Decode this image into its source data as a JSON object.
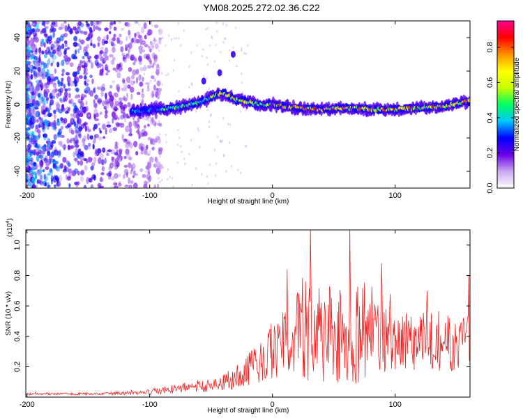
{
  "figure_title": "YM08.2025.272.02.36.C22",
  "chart_data": [
    {
      "type": "heatmap",
      "name": "spectrogram",
      "xlabel": "Height of straight line (km)",
      "ylabel": "Frequency (Hz)",
      "xlim": [
        -201,
        161
      ],
      "ylim": [
        -50,
        50
      ],
      "x_ticks": [
        -200,
        -100,
        0,
        100
      ],
      "y_ticks": [
        -40,
        -20,
        0,
        20,
        40
      ],
      "colorbar": {
        "label": "Normalized spectral amplitude",
        "range": [
          0,
          0.95
        ],
        "ticks": [
          0.0,
          0.2,
          0.4,
          0.6,
          0.8
        ],
        "colors": [
          "#ffffff",
          "#c9a8f0",
          "#6a00e8",
          "#0000ff",
          "#00c8ff",
          "#00ff60",
          "#c8ff00",
          "#ffff00",
          "#ff9000",
          "#ff0000",
          "#ff0090"
        ]
      },
      "ridge": {
        "description": "main signal band frequency versus height",
        "height_km": [
          -110,
          -80,
          -60,
          -45,
          -40,
          -30,
          -10,
          0,
          20,
          40,
          60,
          80,
          100,
          120,
          140,
          160
        ],
        "frequency_hz": [
          -4,
          -2,
          1,
          6,
          7,
          3,
          0,
          0,
          -2,
          -3,
          -2,
          -3,
          -3,
          -2,
          -1,
          2
        ]
      },
      "outliers": [
        {
          "height_km": -56,
          "frequency_hz": 14
        },
        {
          "height_km": -43,
          "frequency_hz": 19
        },
        {
          "height_km": -32,
          "frequency_hz": 30
        }
      ]
    },
    {
      "type": "line",
      "name": "snr",
      "xlabel": "Height of straight line (km)",
      "ylabel": "SNR (10 * v/v)",
      "y_multiplier": "(x10",
      "y_multiplier_exp": "4",
      "y_multiplier_close": ")",
      "xlim": [
        -201,
        161
      ],
      "ylim": [
        0,
        1.1
      ],
      "x_ticks": [
        -200,
        -100,
        0,
        100
      ],
      "y_ticks": [
        0.2,
        0.4,
        0.6,
        0.8,
        1.0
      ],
      "series_color": "#ee2222",
      "envelope": {
        "height_km": [
          -200,
          -150,
          -110,
          -90,
          -70,
          -50,
          -30,
          -15,
          0,
          15,
          30,
          50,
          65,
          80,
          100,
          130,
          161
        ],
        "snr_base": [
          0.02,
          0.02,
          0.025,
          0.04,
          0.06,
          0.07,
          0.12,
          0.2,
          0.28,
          0.35,
          0.4,
          0.4,
          0.4,
          0.38,
          0.36,
          0.35,
          0.33
        ],
        "snr_noise": [
          0.01,
          0.01,
          0.015,
          0.03,
          0.04,
          0.05,
          0.09,
          0.16,
          0.22,
          0.32,
          0.45,
          0.45,
          0.45,
          0.35,
          0.25,
          0.25,
          0.25
        ]
      },
      "peaks": [
        {
          "height_km": 12,
          "snr": 0.84
        },
        {
          "height_km": 31,
          "snr": 1.12
        },
        {
          "height_km": 63,
          "snr": 1.12
        },
        {
          "height_km": 89,
          "snr": 0.88
        },
        {
          "height_km": 160,
          "snr": 0.8
        }
      ]
    }
  ]
}
